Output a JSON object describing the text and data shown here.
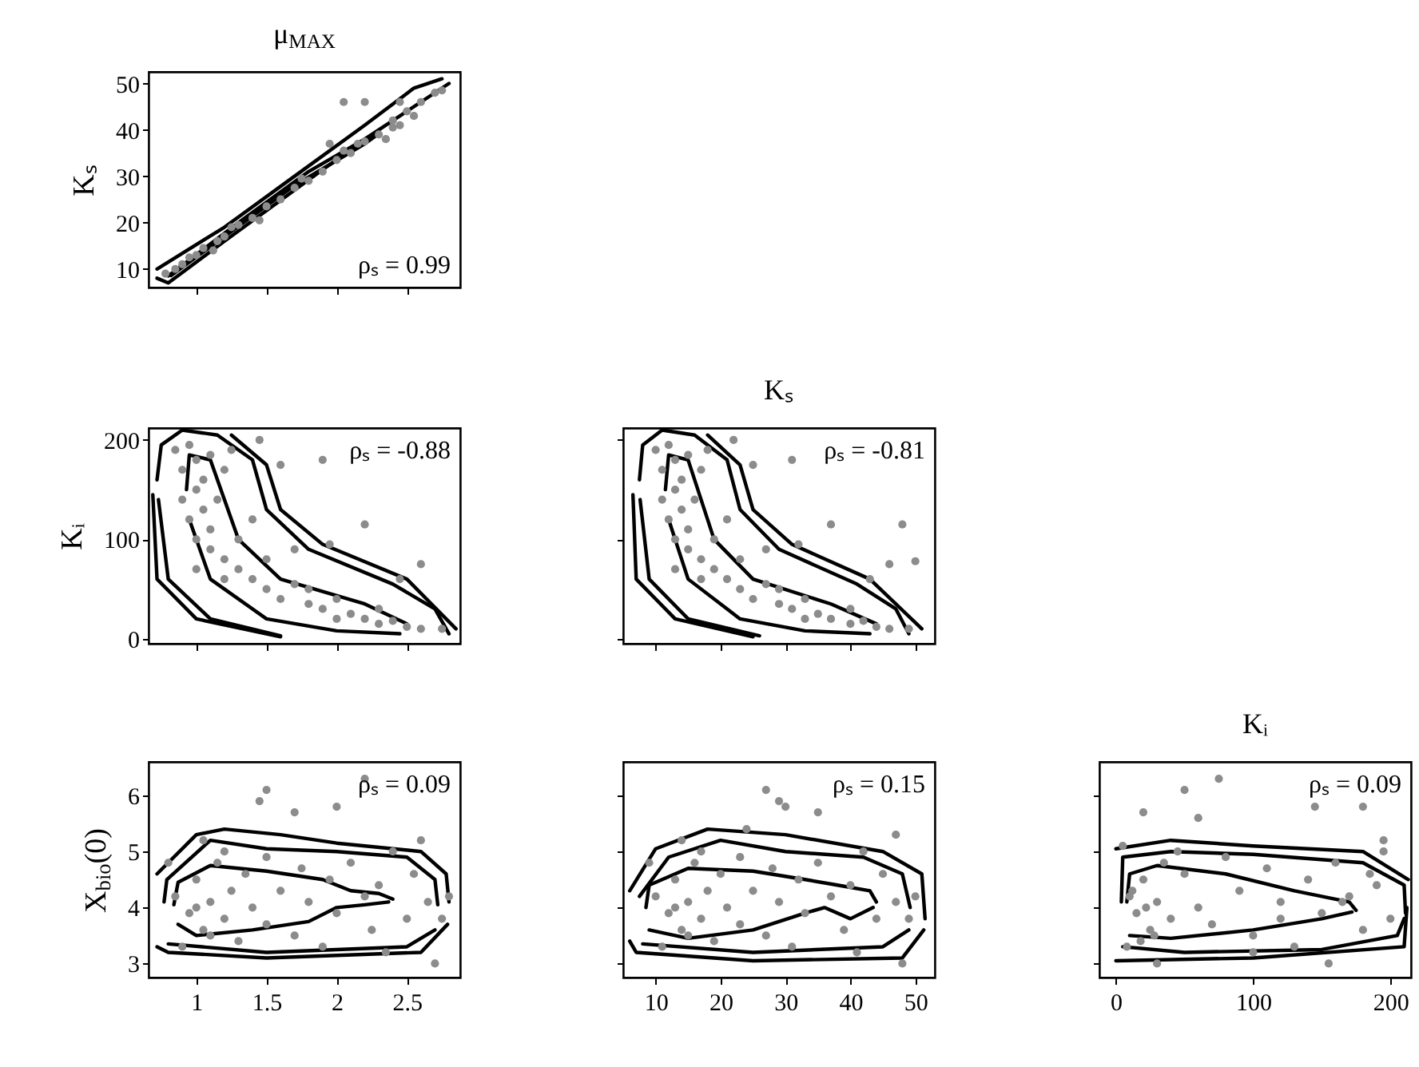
{
  "chart_data": [
    {
      "type": "scatter",
      "title": "μ$_{MAX}$",
      "ylabel": "Kₛ",
      "xlim": [
        0.66,
        2.88
      ],
      "ylim": [
        6,
        52.5
      ],
      "xticks": [
        1,
        1.5,
        2,
        2.5
      ],
      "yticks": [
        10,
        20,
        30,
        40,
        50
      ],
      "tick_labels": "y",
      "annotations": [
        "ρₛ = 0.99"
      ],
      "series": [
        {
          "type": "line",
          "color": "#000000",
          "marker": "none",
          "x": [
            0.72,
            1.2,
            1.7,
            2.2,
            2.55,
            2.75
          ],
          "values": [
            10,
            19,
            30,
            41,
            49,
            51
          ]
        },
        {
          "type": "line",
          "color": "#000000",
          "marker": "none",
          "x": [
            0.72,
            0.8,
            1.2,
            1.7,
            2.2,
            2.6,
            2.8
          ],
          "values": [
            8,
            7,
            16,
            27,
            38,
            46,
            50
          ]
        },
        {
          "type": "line",
          "color": "#000000",
          "marker": "none",
          "x": [
            0.8,
            1.3,
            1.8,
            2.2,
            2.3
          ],
          "values": [
            8.5,
            20,
            31,
            38,
            39
          ]
        },
        {
          "type": "line",
          "color": "#000000",
          "marker": "none",
          "x": [
            0.82,
            1.2,
            1.7,
            2.2,
            2.27
          ],
          "values": [
            8.6,
            17,
            28,
            37,
            38.5
          ]
        },
        {
          "type": "scatter",
          "color": "#8c8c8c",
          "marker": "circle",
          "x": [
            0.78,
            0.85,
            0.9,
            0.95,
            1.0,
            1.05,
            1.15,
            1.2,
            1.3,
            1.4,
            1.5,
            1.6,
            1.7,
            1.8,
            1.9,
            2.0,
            2.1,
            2.2,
            2.3,
            2.4,
            2.5,
            2.6,
            2.7,
            1.12,
            1.25,
            1.45,
            1.75,
            2.05,
            2.15,
            2.35,
            2.45,
            2.55,
            2.2,
            2.4,
            1.95,
            2.05,
            2.75,
            2.45
          ],
          "values": [
            9,
            10,
            11,
            12.5,
            13,
            14.5,
            16,
            17,
            19.5,
            21,
            23.5,
            25,
            27.5,
            29,
            31,
            33.5,
            35,
            37.5,
            39,
            42,
            44,
            46,
            48,
            14,
            19,
            20.5,
            29.5,
            35.5,
            37,
            38,
            46,
            43,
            46,
            40.5,
            37,
            46,
            48.5,
            41
          ]
        }
      ]
    },
    {
      "type": "scatter",
      "ylabel": "Kᵢ",
      "xlim": [
        0.66,
        2.88
      ],
      "ylim": [
        -5,
        212
      ],
      "xticks": [
        1,
        1.5,
        2,
        2.5
      ],
      "yticks": [
        0,
        100,
        200
      ],
      "tick_labels": "y",
      "annotations": [
        "ρₛ = -0.88"
      ],
      "series": [
        {
          "type": "line",
          "color": "#000000",
          "marker": "none",
          "x": [
            0.93,
            0.95,
            1.1,
            1.2,
            1.3,
            1.6,
            2.2,
            2.5
          ],
          "values": [
            150,
            185,
            180,
            140,
            100,
            60,
            35,
            15
          ]
        },
        {
          "type": "line",
          "color": "#000000",
          "marker": "none",
          "x": [
            0.95,
            1.1,
            1.5,
            2.0,
            2.45
          ],
          "values": [
            120,
            60,
            20,
            8,
            5
          ]
        },
        {
          "type": "line",
          "color": "#000000",
          "marker": "none",
          "x": [
            0.73,
            0.8,
            1.1,
            1.6
          ],
          "values": [
            140,
            60,
            20,
            3
          ]
        },
        {
          "type": "line",
          "color": "#000000",
          "marker": "none",
          "x": [
            0.72,
            0.75,
            0.9,
            1.15,
            1.4,
            1.5,
            1.8,
            2.4,
            2.7,
            2.8
          ],
          "values": [
            160,
            195,
            210,
            205,
            180,
            130,
            90,
            55,
            30,
            5
          ]
        },
        {
          "type": "line",
          "color": "#000000",
          "marker": "none",
          "x": [
            0.69,
            0.72,
            1.0,
            1.6
          ],
          "values": [
            145,
            60,
            20,
            2
          ]
        },
        {
          "type": "line",
          "color": "#000000",
          "marker": "none",
          "x": [
            1.25,
            1.5,
            1.6,
            1.9,
            2.5,
            2.85
          ],
          "values": [
            205,
            175,
            130,
            95,
            60,
            10
          ]
        },
        {
          "type": "scatter",
          "color": "#8c8c8c",
          "marker": "circle",
          "x": [
            0.85,
            0.9,
            0.95,
            1.0,
            1.05,
            1.1,
            0.9,
            0.95,
            1.0,
            1.05,
            1.1,
            1.15,
            1.2,
            1.25,
            1.0,
            1.1,
            1.2,
            1.3,
            1.4,
            1.3,
            1.4,
            1.5,
            1.5,
            1.6,
            1.7,
            1.8,
            1.9,
            2.0,
            2.1,
            2.2,
            2.3,
            2.4,
            2.5,
            2.6,
            2.75,
            1.7,
            1.95,
            2.2,
            2.45,
            2.6,
            1.9,
            1.6,
            1.45,
            1.8,
            2.0,
            2.3,
            1.2,
            1.0
          ],
          "values": [
            190,
            170,
            195,
            180,
            160,
            185,
            140,
            120,
            150,
            130,
            110,
            140,
            170,
            190,
            100,
            90,
            80,
            100,
            120,
            70,
            60,
            80,
            50,
            40,
            55,
            35,
            30,
            40,
            25,
            20,
            15,
            18,
            12,
            10,
            10,
            90,
            95,
            115,
            60,
            75,
            180,
            175,
            200,
            50,
            20,
            30,
            60,
            70
          ]
        }
      ]
    },
    {
      "type": "scatter",
      "title": "Kₛ",
      "xlim": [
        5,
        53
      ],
      "ylim": [
        -5,
        212
      ],
      "xticks": [
        10,
        20,
        30,
        40,
        50
      ],
      "yticks": [
        0,
        100,
        200
      ],
      "tick_labels": false,
      "annotations": [
        "ρₛ = -0.81"
      ],
      "series": [
        {
          "type": "line",
          "color": "#000000",
          "marker": "none",
          "x": [
            11.5,
            12,
            15,
            17,
            19,
            25,
            37,
            44
          ],
          "values": [
            150,
            185,
            180,
            140,
            100,
            60,
            35,
            15
          ]
        },
        {
          "type": "line",
          "color": "#000000",
          "marker": "none",
          "x": [
            12,
            15,
            23,
            33,
            43
          ],
          "values": [
            120,
            60,
            20,
            8,
            5
          ]
        },
        {
          "type": "line",
          "color": "#000000",
          "marker": "none",
          "x": [
            7.6,
            9,
            15,
            26
          ],
          "values": [
            140,
            60,
            20,
            3
          ]
        },
        {
          "type": "line",
          "color": "#000000",
          "marker": "none",
          "x": [
            7.5,
            8,
            11,
            16,
            21,
            23,
            29,
            41,
            47,
            49
          ],
          "values": [
            160,
            195,
            210,
            205,
            180,
            130,
            90,
            55,
            30,
            5
          ]
        },
        {
          "type": "line",
          "color": "#000000",
          "marker": "none",
          "x": [
            6.5,
            7,
            13,
            25
          ],
          "values": [
            145,
            60,
            20,
            2
          ]
        },
        {
          "type": "line",
          "color": "#000000",
          "marker": "none",
          "x": [
            18,
            23,
            25,
            31,
            43,
            51
          ],
          "values": [
            205,
            175,
            130,
            95,
            60,
            10
          ]
        },
        {
          "type": "scatter",
          "color": "#8c8c8c",
          "marker": "circle",
          "x": [
            10,
            11,
            12,
            13,
            14,
            15,
            11,
            12,
            13,
            14,
            15,
            16,
            17,
            18,
            13,
            15,
            17,
            19,
            21,
            19,
            21,
            23,
            23,
            25,
            27,
            29,
            31,
            33,
            35,
            37,
            40,
            42,
            44,
            46,
            49,
            27,
            32,
            37,
            43,
            46,
            31,
            25,
            22,
            29,
            33,
            40,
            17,
            13,
            50,
            48
          ],
          "values": [
            190,
            170,
            195,
            180,
            160,
            185,
            140,
            120,
            150,
            130,
            110,
            140,
            170,
            190,
            100,
            90,
            80,
            100,
            120,
            70,
            60,
            80,
            50,
            40,
            55,
            35,
            30,
            40,
            25,
            20,
            15,
            18,
            12,
            10,
            10,
            90,
            95,
            115,
            60,
            75,
            180,
            175,
            200,
            50,
            20,
            30,
            60,
            70,
            78,
            115
          ]
        }
      ]
    },
    {
      "type": "scatter",
      "ylabel": "X$_{bio}$(0)",
      "xlim": [
        0.66,
        2.88
      ],
      "ylim": [
        2.75,
        6.6
      ],
      "xticks": [
        1,
        1.5,
        2,
        2.5
      ],
      "yticks": [
        3,
        4,
        5,
        6
      ],
      "annotations": [
        "ρₛ = 0.09"
      ],
      "series": [
        {
          "type": "line",
          "color": "#000000",
          "marker": "none",
          "x": [
            0.84,
            0.87,
            1.1,
            1.5,
            1.9,
            2.1,
            2.3,
            2.4
          ],
          "values": [
            4.05,
            4.45,
            4.75,
            4.65,
            4.5,
            4.3,
            4.25,
            4.15
          ]
        },
        {
          "type": "line",
          "color": "#000000",
          "marker": "none",
          "x": [
            0.87,
            1.0,
            1.4,
            1.8,
            2.0,
            2.2,
            2.37
          ],
          "values": [
            3.7,
            3.5,
            3.6,
            3.75,
            4.0,
            4.05,
            4.1
          ]
        },
        {
          "type": "line",
          "color": "#000000",
          "marker": "none",
          "x": [
            0.77,
            0.79,
            1.1,
            1.5,
            2.0,
            2.5,
            2.7,
            2.72
          ],
          "values": [
            4.1,
            4.5,
            5.2,
            5.05,
            5.0,
            4.9,
            4.5,
            4.05
          ]
        },
        {
          "type": "line",
          "color": "#000000",
          "marker": "none",
          "x": [
            0.8,
            1.5,
            2.5,
            2.7
          ],
          "values": [
            3.35,
            3.2,
            3.3,
            3.6
          ]
        },
        {
          "type": "line",
          "color": "#000000",
          "marker": "none",
          "x": [
            0.72,
            1.0,
            1.2,
            1.6,
            2.0,
            2.6,
            2.78,
            2.8
          ],
          "values": [
            4.6,
            5.3,
            5.4,
            5.3,
            5.15,
            5.0,
            4.6,
            4.1
          ]
        },
        {
          "type": "line",
          "color": "#000000",
          "marker": "none",
          "x": [
            0.72,
            0.8,
            1.5,
            2.6,
            2.79
          ],
          "values": [
            3.3,
            3.2,
            3.1,
            3.2,
            3.7
          ]
        },
        {
          "type": "scatter",
          "color": "#8c8c8c",
          "marker": "circle",
          "x": [
            0.85,
            0.95,
            1.0,
            1.05,
            1.1,
            1.15,
            1.2,
            1.25,
            1.3,
            1.0,
            1.1,
            1.2,
            0.9,
            1.35,
            1.4,
            1.5,
            1.5,
            1.6,
            1.7,
            1.75,
            1.8,
            1.9,
            1.95,
            2.0,
            2.1,
            2.2,
            2.25,
            2.3,
            2.4,
            2.5,
            2.55,
            2.65,
            2.7,
            2.75,
            1.5,
            1.45,
            2.2,
            2.0,
            1.7,
            2.6,
            2.8,
            1.05,
            2.35,
            0.8
          ],
          "values": [
            4.2,
            3.9,
            4.5,
            3.6,
            4.1,
            4.8,
            3.8,
            4.3,
            3.4,
            4.0,
            3.5,
            5.0,
            3.3,
            4.6,
            4.0,
            3.7,
            4.9,
            4.3,
            3.5,
            4.7,
            4.1,
            3.3,
            4.5,
            3.9,
            4.8,
            4.2,
            3.6,
            4.4,
            5.0,
            3.8,
            4.6,
            4.1,
            3.0,
            3.8,
            6.1,
            5.9,
            6.3,
            5.8,
            5.7,
            5.2,
            4.2,
            5.2,
            3.2,
            4.8
          ]
        }
      ]
    },
    {
      "type": "scatter",
      "xlim": [
        5,
        53
      ],
      "ylim": [
        2.75,
        6.6
      ],
      "xticks": [
        10,
        20,
        30,
        40,
        50
      ],
      "yticks": [
        3,
        4,
        5,
        6
      ],
      "tick_labels": "x",
      "annotations": [
        "ρₛ = 0.15"
      ],
      "series": [
        {
          "type": "line",
          "color": "#000000",
          "marker": "none",
          "x": [
            8.5,
            9,
            15,
            25,
            33,
            38,
            43,
            44
          ],
          "values": [
            4.0,
            4.4,
            4.7,
            4.65,
            4.5,
            4.4,
            4.3,
            4.1
          ]
        },
        {
          "type": "line",
          "color": "#000000",
          "marker": "none",
          "x": [
            9,
            15,
            25,
            33,
            36,
            40,
            43.5
          ],
          "values": [
            3.6,
            3.45,
            3.6,
            3.9,
            4.0,
            3.8,
            4.0
          ]
        },
        {
          "type": "line",
          "color": "#000000",
          "marker": "none",
          "x": [
            7.5,
            12,
            20,
            30,
            42,
            48,
            49.2
          ],
          "values": [
            4.2,
            4.9,
            5.2,
            5.0,
            4.9,
            4.6,
            4.0
          ]
        },
        {
          "type": "line",
          "color": "#000000",
          "marker": "none",
          "x": [
            8,
            25,
            45,
            49
          ],
          "values": [
            3.35,
            3.2,
            3.3,
            3.6
          ]
        },
        {
          "type": "line",
          "color": "#000000",
          "marker": "none",
          "x": [
            6,
            10,
            18,
            30,
            45,
            51,
            51.5
          ],
          "values": [
            4.3,
            5.05,
            5.4,
            5.3,
            5.0,
            4.6,
            3.8
          ]
        },
        {
          "type": "line",
          "color": "#000000",
          "marker": "none",
          "x": [
            6,
            7,
            25,
            48,
            51.3
          ],
          "values": [
            3.4,
            3.2,
            3.05,
            3.1,
            3.6
          ]
        },
        {
          "type": "scatter",
          "color": "#8c8c8c",
          "marker": "circle",
          "x": [
            10,
            12,
            13,
            14,
            15,
            16,
            17,
            18,
            19,
            13,
            15,
            17,
            11,
            20,
            21,
            23,
            23,
            25,
            27,
            28,
            29,
            31,
            32,
            33,
            35,
            37,
            39,
            40,
            42,
            44,
            45,
            47,
            48,
            49,
            27,
            29,
            35,
            30,
            24,
            47,
            50,
            14,
            41,
            9
          ],
          "values": [
            4.2,
            3.9,
            4.5,
            3.6,
            4.1,
            4.8,
            3.8,
            4.3,
            3.4,
            4.0,
            3.5,
            5.0,
            3.3,
            4.6,
            4.0,
            3.7,
            4.9,
            4.3,
            3.5,
            4.7,
            4.1,
            3.3,
            4.5,
            3.9,
            4.8,
            4.2,
            3.6,
            4.4,
            5.0,
            3.8,
            4.6,
            4.1,
            3.0,
            3.8,
            6.1,
            5.9,
            5.7,
            5.8,
            5.4,
            5.3,
            4.2,
            5.2,
            3.2,
            4.8
          ]
        }
      ]
    },
    {
      "type": "scatter",
      "title": "Kᵢ",
      "xlim": [
        -12,
        215
      ],
      "ylim": [
        2.75,
        6.6
      ],
      "xticks": [
        0,
        100,
        200
      ],
      "yticks": [
        3,
        4,
        5,
        6
      ],
      "tick_labels": "x",
      "annotations": [
        "ρₛ = 0.09"
      ],
      "series": [
        {
          "type": "line",
          "color": "#000000",
          "marker": "none",
          "x": [
            8,
            10,
            30,
            80,
            130,
            170,
            175
          ],
          "values": [
            4.1,
            4.6,
            4.75,
            4.6,
            4.3,
            4.1,
            3.95
          ]
        },
        {
          "type": "line",
          "color": "#000000",
          "marker": "none",
          "x": [
            10,
            40,
            100,
            150,
            172
          ],
          "values": [
            3.5,
            3.45,
            3.6,
            3.8,
            3.92
          ]
        },
        {
          "type": "line",
          "color": "#000000",
          "marker": "none",
          "x": [
            4,
            5,
            40,
            100,
            180,
            210,
            211
          ],
          "values": [
            4.1,
            4.9,
            5.0,
            4.95,
            4.8,
            4.4,
            3.9
          ]
        },
        {
          "type": "line",
          "color": "#000000",
          "marker": "none",
          "x": [
            5,
            50,
            150,
            205,
            210
          ],
          "values": [
            3.3,
            3.2,
            3.25,
            3.5,
            3.8
          ]
        },
        {
          "type": "line",
          "color": "#000000",
          "marker": "none",
          "x": [
            0,
            40,
            100,
            180,
            213
          ],
          "values": [
            5.05,
            5.2,
            5.1,
            5.0,
            4.5
          ]
        },
        {
          "type": "line",
          "color": "#000000",
          "marker": "none",
          "x": [
            0,
            100,
            210,
            212
          ],
          "values": [
            3.05,
            3.1,
            3.3,
            4.0
          ]
        },
        {
          "type": "scatter",
          "color": "#8c8c8c",
          "marker": "circle",
          "x": [
            10,
            15,
            20,
            25,
            30,
            35,
            40,
            12,
            18,
            22,
            28,
            45,
            8,
            50,
            60,
            70,
            80,
            90,
            100,
            110,
            120,
            130,
            140,
            150,
            160,
            170,
            180,
            190,
            195,
            200,
            185,
            165,
            155,
            120,
            20,
            50,
            75,
            60,
            145,
            180,
            195,
            5,
            100,
            30
          ],
          "values": [
            4.2,
            3.9,
            4.5,
            3.6,
            4.1,
            4.8,
            3.8,
            4.3,
            3.4,
            4.0,
            3.5,
            5.0,
            3.3,
            4.6,
            4.0,
            3.7,
            4.9,
            4.3,
            3.5,
            4.7,
            4.1,
            3.3,
            4.5,
            3.9,
            4.8,
            4.2,
            3.6,
            4.4,
            5.0,
            3.8,
            4.6,
            4.1,
            3.0,
            3.8,
            5.7,
            6.1,
            6.3,
            5.6,
            5.8,
            5.8,
            5.2,
            5.1,
            3.2,
            3.0
          ]
        }
      ]
    }
  ]
}
